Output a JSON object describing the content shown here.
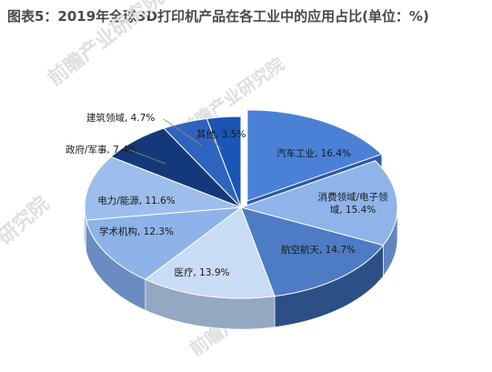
{
  "title": "图表5：2019年全球3D打印机产品在各工业中的应用占比(单位：%)",
  "watermark": {
    "main_text": "前瞻产业研究院",
    "side_text": "研究院"
  },
  "colors": {
    "wm": "#dcdfe3"
  },
  "chart_data": {
    "type": "pie",
    "title": "图表5：2019年全球3D打印机产品在各工业中的应用占比(单位：%)",
    "unit": "%",
    "slices": [
      {
        "name": "汽车工业",
        "value": 16.4,
        "label": "汽车工业, 16.4%",
        "top": "#4a80d6",
        "side": "#2d5aa8",
        "exploded": true
      },
      {
        "name": "消费领域/电子领域",
        "value": 15.4,
        "label_lines": [
          "消费领域/电子领",
          "域, 15.4%"
        ],
        "top": "#8eb4ea",
        "side": "#5f86c0"
      },
      {
        "name": "航空航天",
        "value": 14.7,
        "label": "航空航天, 14.7%",
        "top": "#4d7cc4",
        "side": "#2c4f85"
      },
      {
        "name": "医疗",
        "value": 13.9,
        "label": "医疗, 13.9%",
        "top": "#c9dcf5",
        "side": "#95a8c2"
      },
      {
        "name": "学术机构",
        "value": 12.3,
        "label": "学术机构, 12.3%",
        "top": "#8db3e8",
        "side": "#6a8cc0"
      },
      {
        "name": "电力/能源",
        "value": 11.6,
        "label": "电力/能源, 11.6%",
        "top": "#9dbeec",
        "side": "#7496c8"
      },
      {
        "name": "政府/军事",
        "value": 7.4,
        "label": "政府/军事, 7.4%",
        "top": "#14397a",
        "side": "#0c2452"
      },
      {
        "name": "建筑领域",
        "value": 4.7,
        "label": "建筑领域, 4.7%",
        "top": "#2e64bd",
        "side": "#1d4385"
      },
      {
        "name": "其他",
        "value": 3.5,
        "label": "其他, 3.5%",
        "top": "#1b55b5",
        "side": "#123b80"
      }
    ]
  }
}
